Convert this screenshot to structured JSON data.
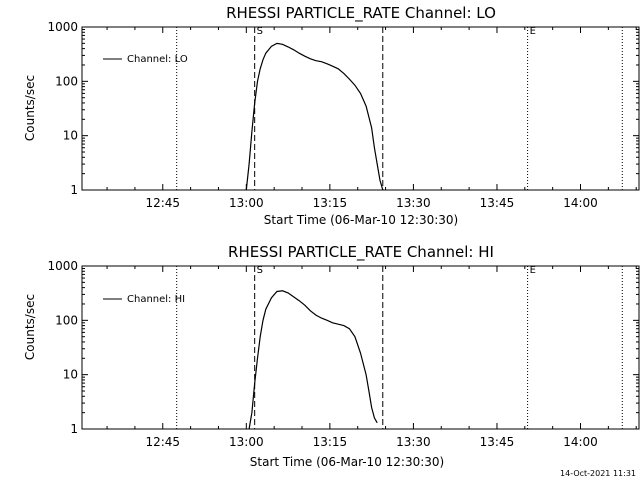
{
  "footer_timestamp": "14-Oct-2021 11:31",
  "chart_data": [
    {
      "type": "line",
      "title": "RHESSI PARTICLE_RATE Channel: LO",
      "xlabel": "Start Time (06-Mar-10 12:30:30)",
      "ylabel": "Counts/sec",
      "y_scale": "log",
      "ylim": [
        1,
        1000
      ],
      "y_ticks": [
        {
          "value": 1,
          "label": "1"
        },
        {
          "value": 10,
          "label": "10"
        },
        {
          "value": 100,
          "label": "100"
        },
        {
          "value": 1000,
          "label": "1000"
        }
      ],
      "xlim_minutes": [
        0,
        100
      ],
      "x_ticks": [
        {
          "minute": 14.5,
          "label": "12:45"
        },
        {
          "minute": 29.5,
          "label": "13:00"
        },
        {
          "minute": 44.5,
          "label": "13:15"
        },
        {
          "minute": 59.5,
          "label": "13:30"
        },
        {
          "minute": 74.5,
          "label": "13:45"
        },
        {
          "minute": 89.5,
          "label": "14:00"
        }
      ],
      "legend": {
        "label": "Channel: LO",
        "position": "top-left"
      },
      "markers": [
        {
          "minute": 31,
          "style": "dashed",
          "label": "S"
        },
        {
          "minute": 54,
          "style": "dashed",
          "label": ""
        },
        {
          "minute": 80,
          "style": "dotted",
          "label": "E"
        },
        {
          "minute": 17,
          "style": "dotted",
          "label": ""
        },
        {
          "minute": 97,
          "style": "dotted",
          "label": ""
        }
      ],
      "series": [
        {
          "name": "Channel: LO",
          "x": [
            29.5,
            30.0,
            30.5,
            31.0,
            31.5,
            32.0,
            32.5,
            33.0,
            34.0,
            35.0,
            36.0,
            37.0,
            38.0,
            39.0,
            40.0,
            41.0,
            42.0,
            43.0,
            44.0,
            45.0,
            46.0,
            47.0,
            48.0,
            49.0,
            50.0,
            51.0,
            52.0,
            52.5,
            53.0,
            53.5,
            54.0
          ],
          "y": [
            1,
            3,
            12,
            40,
            100,
            170,
            250,
            330,
            440,
            500,
            480,
            430,
            380,
            330,
            290,
            260,
            240,
            230,
            210,
            190,
            170,
            140,
            110,
            85,
            60,
            35,
            14,
            6,
            3,
            1.5,
            1
          ]
        }
      ]
    },
    {
      "type": "line",
      "title": "RHESSI PARTICLE_RATE Channel: HI",
      "xlabel": "Start Time (06-Mar-10 12:30:30)",
      "ylabel": "Counts/sec",
      "y_scale": "log",
      "ylim": [
        1,
        1000
      ],
      "y_ticks": [
        {
          "value": 1,
          "label": "1"
        },
        {
          "value": 10,
          "label": "10"
        },
        {
          "value": 100,
          "label": "100"
        },
        {
          "value": 1000,
          "label": "1000"
        }
      ],
      "xlim_minutes": [
        0,
        100
      ],
      "x_ticks": [
        {
          "minute": 14.5,
          "label": "12:45"
        },
        {
          "minute": 29.5,
          "label": "13:00"
        },
        {
          "minute": 44.5,
          "label": "13:15"
        },
        {
          "minute": 59.5,
          "label": "13:30"
        },
        {
          "minute": 74.5,
          "label": "13:45"
        },
        {
          "minute": 89.5,
          "label": "14:00"
        }
      ],
      "legend": {
        "label": "Channel: HI",
        "position": "top-left"
      },
      "markers": [
        {
          "minute": 31,
          "style": "dashed",
          "label": "S"
        },
        {
          "minute": 54,
          "style": "dashed",
          "label": ""
        },
        {
          "minute": 80,
          "style": "dotted",
          "label": "E"
        },
        {
          "minute": 17,
          "style": "dotted",
          "label": ""
        },
        {
          "minute": 97,
          "style": "dotted",
          "label": ""
        }
      ],
      "series": [
        {
          "name": "Channel: HI",
          "x": [
            30.0,
            30.5,
            31.0,
            31.5,
            32.0,
            32.5,
            33.0,
            34.0,
            35.0,
            36.0,
            37.0,
            38.0,
            39.0,
            40.0,
            41.0,
            42.0,
            43.0,
            44.0,
            45.0,
            46.0,
            47.0,
            48.0,
            49.0,
            50.0,
            51.0,
            51.5,
            52.0,
            52.5,
            53.0
          ],
          "y": [
            1,
            2,
            7,
            20,
            50,
            100,
            160,
            260,
            340,
            350,
            320,
            270,
            230,
            190,
            150,
            125,
            110,
            100,
            90,
            85,
            80,
            70,
            50,
            25,
            10,
            5,
            2.5,
            1.6,
            1.3
          ]
        }
      ]
    }
  ]
}
